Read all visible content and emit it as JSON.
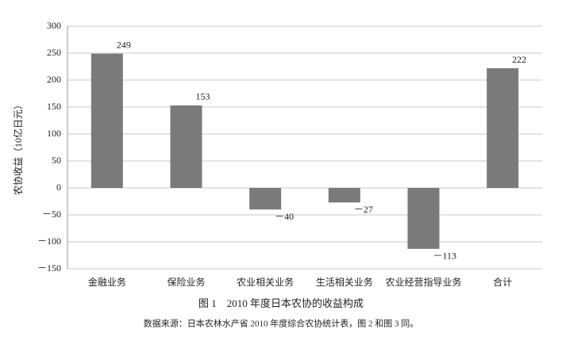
{
  "chart_data": {
    "type": "bar",
    "y_label": "农协收益（10亿日元）",
    "caption": "图 1　2010 年度日本农协的收益构成",
    "source": "数据来源：日本农林水产省 2010 年度综合农协统计表，图 2 和图 3 同。",
    "categories": [
      "金融业务",
      "保险业务",
      "农业相关业务",
      "生活相关业务",
      "农业经营指导业务",
      "合计"
    ],
    "values": [
      249,
      153,
      -40,
      -27,
      -113,
      222
    ],
    "value_labels": [
      "249",
      "153",
      "－40",
      "－27",
      "－113",
      "222"
    ],
    "color": "#7a7a7a",
    "ylim": [
      -150,
      300
    ],
    "yticks": [
      {
        "value": -150,
        "label": "－150"
      },
      {
        "value": -100,
        "label": "－100"
      },
      {
        "value": -50,
        "label": "－50"
      },
      0,
      50,
      100,
      150,
      200,
      250,
      300
    ],
    "grid": true
  }
}
